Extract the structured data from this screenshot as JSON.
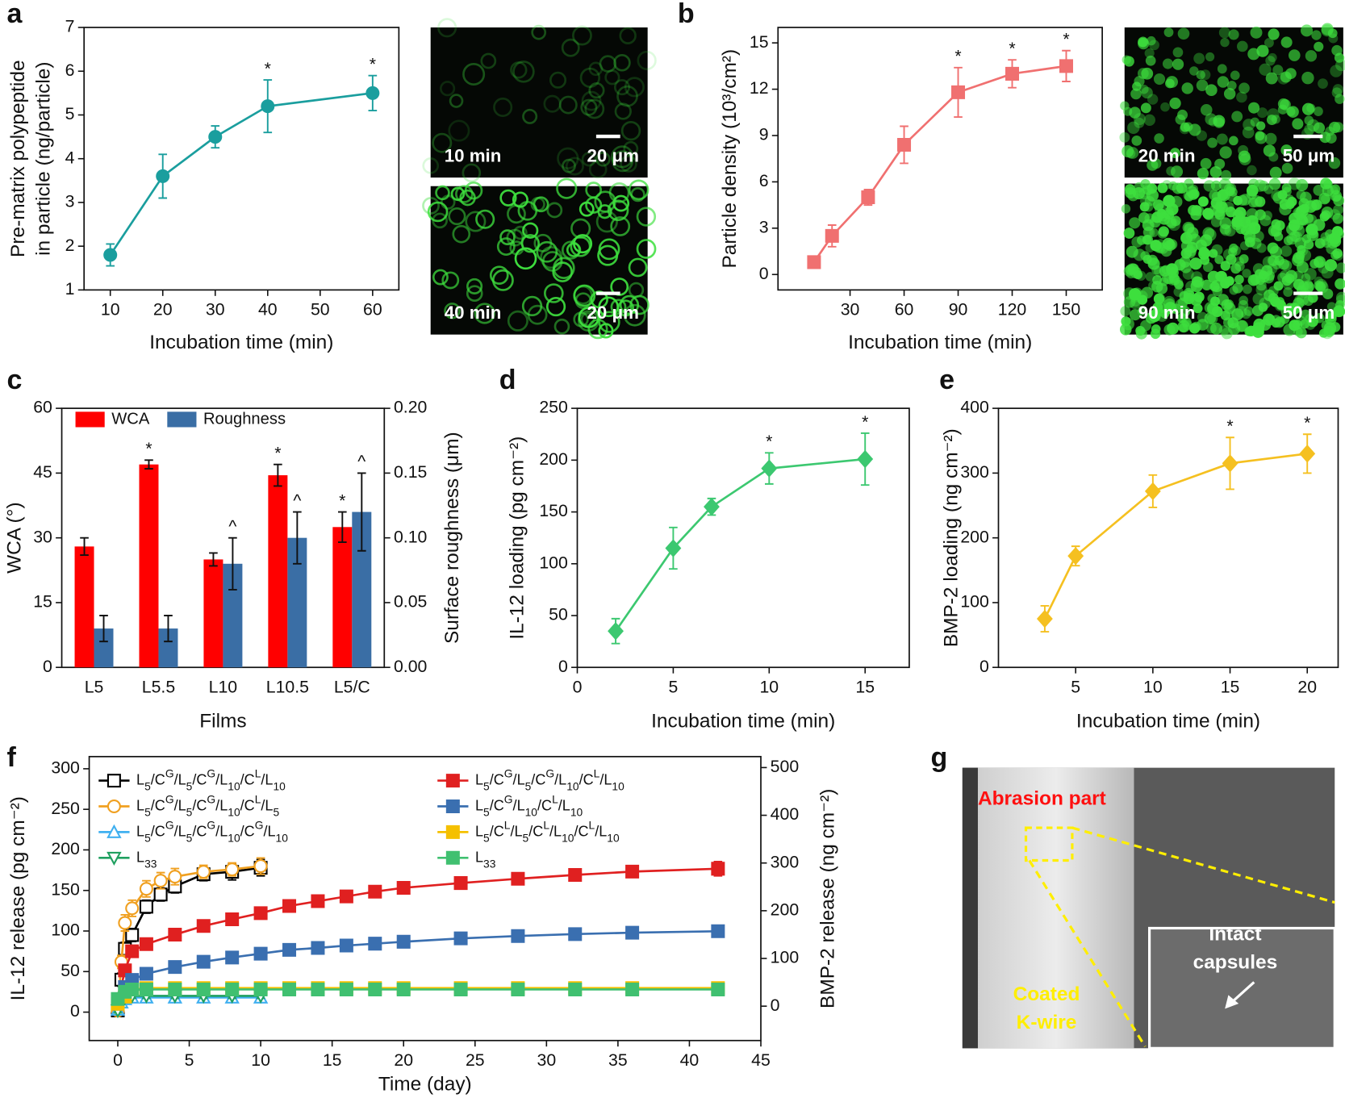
{
  "panel_labels": [
    "a",
    "b",
    "c",
    "d",
    "e",
    "f",
    "g"
  ],
  "images": [
    {
      "label": "10 min",
      "scale": "20 μm"
    },
    {
      "label": "40 min",
      "scale": "20 μm"
    },
    {
      "label": "20 min",
      "scale": "50 μm"
    },
    {
      "label": "90 min",
      "scale": "50 μm"
    }
  ],
  "sem": {
    "abrasion": "Abrasion part",
    "coated": [
      "Coated",
      "K-wire"
    ],
    "intact": [
      "Intact",
      "capsules"
    ]
  },
  "chart_data": [
    {
      "type": "line",
      "xlabel": "Incubation time (min)",
      "ylabel": [
        "Pre-matrix polypeptide",
        "in particle (ng/particle)"
      ],
      "x": [
        10,
        20,
        30,
        40,
        60
      ],
      "xlim": [
        5,
        65
      ],
      "xticks": [
        10,
        20,
        30,
        40,
        50,
        60
      ],
      "ylim": [
        1,
        7
      ],
      "yticks": [
        1,
        2,
        3,
        4,
        5,
        6,
        7
      ],
      "series": [
        {
          "color": "#1a9e9e",
          "marker": "circle",
          "filled": true,
          "values": [
            1.8,
            3.6,
            4.5,
            5.2,
            5.5
          ],
          "errors": [
            0.25,
            0.5,
            0.25,
            0.6,
            0.4
          ],
          "point_labels": [
            null,
            null,
            null,
            "*",
            "*"
          ]
        }
      ]
    },
    {
      "type": "line",
      "xlabel": "Incubation time (min)",
      "ylabel": [
        "Particle density (10³/cm²)"
      ],
      "x": [
        10,
        20,
        40,
        60,
        90,
        120,
        150
      ],
      "xlim": [
        -10,
        170
      ],
      "xticks": [
        30,
        60,
        90,
        120,
        150
      ],
      "ylim": [
        -1,
        16
      ],
      "yticks": [
        0,
        3,
        6,
        9,
        12,
        15
      ],
      "series": [
        {
          "color": "#f07070",
          "marker": "square",
          "filled": true,
          "values": [
            0.8,
            2.5,
            5.0,
            8.4,
            11.8,
            13.0,
            13.5
          ],
          "errors": [
            0.2,
            0.7,
            0.5,
            1.2,
            1.6,
            0.9,
            1.0
          ],
          "point_labels": [
            null,
            null,
            null,
            null,
            "*",
            "*",
            "*"
          ]
        }
      ]
    },
    {
      "type": "bar",
      "xlabel": "Films",
      "ylabel": [
        "WCA (°)"
      ],
      "y2label": [
        "Surface roughness (μm)"
      ],
      "categories": [
        "L5",
        "L5.5",
        "L10",
        "L10.5",
        "L5/C"
      ],
      "ylim": [
        0,
        60
      ],
      "yticks": [
        0,
        15,
        30,
        45,
        60
      ],
      "y2lim": [
        0,
        0.2
      ],
      "y2ticks": [
        {
          "value": 0,
          "label": "0.00"
        },
        0.05,
        {
          "value": 0.1,
          "label": "0.10"
        },
        0.15,
        {
          "value": 0.2,
          "label": "0.20"
        }
      ],
      "legend": "upper left",
      "series": [
        {
          "name": "WCA",
          "color": "#ff0000",
          "values": [
            28,
            47,
            25,
            44.5,
            32.5
          ],
          "errors": [
            2,
            1,
            1.5,
            2.5,
            3.5
          ],
          "point_labels": [
            null,
            "*",
            null,
            "*",
            "*"
          ]
        },
        {
          "name": "Roughness",
          "color": "#3a6ea5",
          "axis": "y2",
          "values": [
            0.03,
            0.03,
            0.08,
            0.1,
            0.12
          ],
          "errors": [
            0.01,
            0.01,
            0.02,
            0.02,
            0.03
          ],
          "point_labels": [
            null,
            null,
            "^",
            "^",
            "^"
          ]
        }
      ]
    },
    {
      "type": "line",
      "xlabel": "Incubation time (min)",
      "ylabel": [
        "IL-12 loading (pg cm⁻²)"
      ],
      "x": [
        2,
        5,
        7,
        10,
        15
      ],
      "xlim": [
        0,
        17.3
      ],
      "xticks": [
        0,
        5,
        10,
        15
      ],
      "ylim": [
        0,
        250
      ],
      "yticks": [
        0,
        50,
        100,
        150,
        200,
        250
      ],
      "series": [
        {
          "color": "#3cc870",
          "marker": "diamond",
          "filled": true,
          "values": [
            35,
            115,
            155,
            192,
            201
          ],
          "errors": [
            12,
            20,
            8,
            15,
            25
          ],
          "point_labels": [
            null,
            null,
            null,
            "*",
            "*"
          ]
        }
      ]
    },
    {
      "type": "line",
      "xlabel": "Incubation time (min)",
      "ylabel": [
        "BMP-2 loading (ng cm⁻²)"
      ],
      "x": [
        3,
        5,
        10,
        15,
        20
      ],
      "xlim": [
        0,
        22
      ],
      "xticks": [
        5,
        10,
        15,
        20
      ],
      "ylim": [
        0,
        400
      ],
      "yticks": [
        0,
        100,
        200,
        300,
        400
      ],
      "series": [
        {
          "color": "#f5c020",
          "marker": "diamond",
          "filled": true,
          "values": [
            75,
            172,
            272,
            315,
            330
          ],
          "errors": [
            20,
            15,
            25,
            40,
            30
          ],
          "point_labels": [
            null,
            null,
            null,
            "*",
            "*"
          ]
        }
      ]
    },
    {
      "type": "line",
      "xlabel": "Time (day)",
      "ylabel": [
        "IL-12 release (pg cm⁻²)"
      ],
      "y2label": [
        "BMP-2 release (ng cm⁻²)"
      ],
      "xlim": [
        -2,
        45
      ],
      "xticks": [
        0,
        5,
        10,
        15,
        20,
        25,
        30,
        35,
        40,
        45
      ],
      "ylim": [
        -35,
        315
      ],
      "yticks": [
        0,
        50,
        100,
        150,
        200,
        250,
        300
      ],
      "y2lim": [
        -72,
        523
      ],
      "y2ticks": [
        0,
        100,
        200,
        300,
        400,
        500
      ],
      "legend": "upper left",
      "series": [
        {
          "name": "L5/CG/L5/CG/L10/CL/L10",
          "color": "#000000",
          "marker": "square",
          "filled": false,
          "x": [
            0,
            0.25,
            0.5,
            1,
            2,
            3,
            4,
            6,
            8,
            10
          ],
          "values": [
            2,
            40,
            78,
            95,
            130,
            145,
            155,
            170,
            173,
            178
          ],
          "errors": [
            2,
            8,
            8,
            8,
            8,
            8,
            8,
            8,
            10,
            10
          ]
        },
        {
          "name": "L5/CG/L5/CG/L10/CL/L5",
          "color": "#f0a020",
          "marker": "circle",
          "filled": false,
          "x": [
            0,
            0.25,
            0.5,
            1,
            2,
            3,
            4,
            6,
            8,
            10
          ],
          "values": [
            2,
            62,
            110,
            128,
            152,
            162,
            167,
            173,
            176,
            180
          ],
          "errors": [
            2,
            8,
            10,
            10,
            10,
            10,
            10,
            8,
            8,
            10
          ]
        },
        {
          "name": "L5/CG/L5/CG/L10/CG/L10",
          "color": "#40b0f0",
          "marker": "triangle",
          "filled": false,
          "x": [
            0,
            0.25,
            0.5,
            1,
            2,
            4,
            6,
            8,
            10
          ],
          "values": [
            3,
            12,
            16,
            18,
            18,
            18,
            18,
            18,
            18
          ],
          "errors": [
            3,
            3,
            3,
            3,
            3,
            3,
            3,
            3,
            3
          ]
        },
        {
          "name": "L33",
          "color": "#20a060",
          "marker": "triangle-down",
          "filled": false,
          "x": [
            0,
            0.25,
            0.5,
            1,
            2,
            4,
            6,
            8,
            10
          ],
          "values": [
            2,
            14,
            18,
            20,
            20,
            20,
            20,
            20,
            20
          ],
          "errors": [
            3,
            3,
            3,
            3,
            3,
            3,
            3,
            3,
            3
          ]
        },
        {
          "name": "L5/CG/L5/CG/L10/CL/L10",
          "color": "#e02020",
          "marker": "square",
          "filled": true,
          "axis": "y2",
          "x": [
            0,
            0.5,
            1,
            2,
            4,
            6,
            8,
            10,
            12,
            14,
            16,
            18,
            20,
            24,
            28,
            32,
            36,
            42
          ],
          "values": [
            10,
            75,
            115,
            130,
            150,
            168,
            182,
            195,
            210,
            220,
            230,
            240,
            248,
            258,
            267,
            275,
            282,
            288
          ],
          "errors": [
            3,
            8,
            8,
            8,
            8,
            8,
            10,
            12,
            12,
            8,
            10,
            12,
            10,
            12,
            8,
            10,
            12,
            15
          ]
        },
        {
          "name": "L5/CG/L10/CL/L10",
          "color": "#3a6fb0",
          "marker": "square",
          "filled": true,
          "axis": "y2",
          "x": [
            0,
            0.5,
            1,
            2,
            4,
            6,
            8,
            10,
            12,
            14,
            16,
            18,
            20,
            24,
            28,
            32,
            36,
            42
          ],
          "values": [
            5,
            40,
            55,
            68,
            82,
            93,
            102,
            110,
            118,
            122,
            127,
            131,
            135,
            142,
            147,
            151,
            154,
            157
          ],
          "errors": [
            3,
            6,
            6,
            6,
            6,
            6,
            6,
            6,
            8,
            6,
            6,
            6,
            6,
            8,
            10,
            10,
            6,
            12
          ]
        },
        {
          "name": "L5/CL/L5/CL/L10/CL/L10",
          "color": "#f5c000",
          "marker": "square",
          "filled": true,
          "axis": "y2",
          "x": [
            0,
            0.5,
            1,
            2,
            4,
            6,
            8,
            10,
            12,
            14,
            16,
            18,
            20,
            24,
            28,
            32,
            36,
            42
          ],
          "values": [
            5,
            20,
            35,
            38,
            38,
            38,
            38,
            38,
            38,
            38,
            38,
            38,
            38,
            38,
            38,
            38,
            38,
            38
          ],
          "errors": [
            5,
            5,
            5,
            5,
            5,
            5,
            5,
            5,
            5,
            5,
            5,
            5,
            5,
            5,
            5,
            5,
            5,
            5
          ]
        },
        {
          "name": "L33",
          "color": "#40c070",
          "marker": "square",
          "filled": true,
          "axis": "y2",
          "x": [
            0,
            0.5,
            1,
            2,
            4,
            6,
            8,
            10,
            12,
            14,
            16,
            18,
            20,
            24,
            28,
            32,
            36,
            42
          ],
          "values": [
            15,
            30,
            35,
            35,
            35,
            35,
            35,
            35,
            35,
            35,
            35,
            35,
            35,
            35,
            35,
            35,
            35,
            35
          ],
          "errors": [
            5,
            5,
            5,
            5,
            5,
            5,
            5,
            5,
            5,
            5,
            5,
            5,
            5,
            5,
            5,
            5,
            5,
            5
          ]
        }
      ]
    }
  ]
}
